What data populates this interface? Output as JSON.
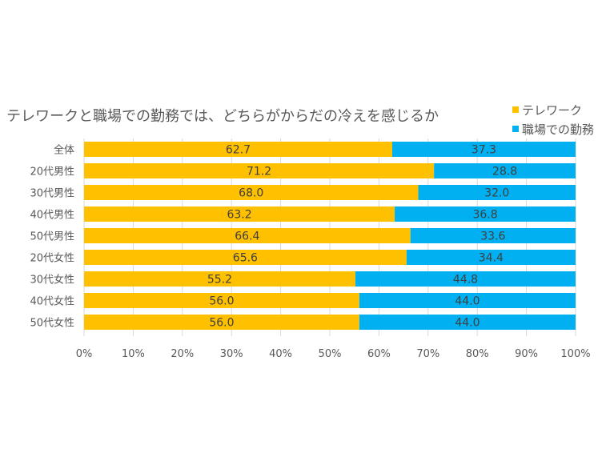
{
  "chart_data": {
    "type": "bar",
    "orientation": "horizontal",
    "stacked": "percent",
    "title": "テレワークと職場での勤務では、どちらがからだの冷えを感じるか",
    "xlabel": "",
    "ylabel": "",
    "xlim": [
      0,
      100
    ],
    "x_ticks": [
      "0%",
      "10%",
      "20%",
      "30%",
      "40%",
      "50%",
      "60%",
      "70%",
      "80%",
      "90%",
      "100%"
    ],
    "grid": "vertical",
    "legend_position": "top-right",
    "categories": [
      "全体",
      "20代男性",
      "30代男性",
      "40代男性",
      "50代男性",
      "20代女性",
      "30代女性",
      "40代女性",
      "50代女性"
    ],
    "series": [
      {
        "name": "テレワーク",
        "color": "#FFC000",
        "values": [
          62.7,
          71.2,
          68.0,
          63.2,
          66.4,
          65.6,
          55.2,
          56.0,
          56.0
        ],
        "labels": [
          "62.7",
          "71.2",
          "68.0",
          "63.2",
          "66.4",
          "65.6",
          "55.2",
          "56.0",
          "56.0"
        ]
      },
      {
        "name": "職場での勤務",
        "color": "#00B0F0",
        "values": [
          37.3,
          28.8,
          32.0,
          36.8,
          33.6,
          34.4,
          44.8,
          44.0,
          44.0
        ],
        "labels": [
          "37.3",
          "28.8",
          "32.0",
          "36.8",
          "33.6",
          "34.4",
          "44.8",
          "44.0",
          "44.0"
        ]
      }
    ]
  }
}
